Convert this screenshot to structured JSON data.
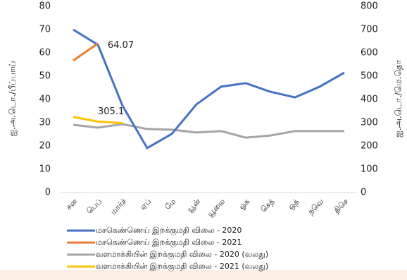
{
  "chart_data": {
    "type": "line",
    "categories": [
      "சன",
      "பெப்",
      "மார்ச்",
      "ஏப்",
      "மே",
      "யூன்",
      "யூலை",
      "ஓக",
      "செத்",
      "ஒத்",
      "நவெ",
      "திசெ"
    ],
    "y_label": "ஐ.அ.டொ./பீப்பாய்",
    "y2_label": "ஐ.அ.டொ./மெ.தொ",
    "ylim": [
      0,
      80
    ],
    "yticks": [
      0,
      10,
      20,
      30,
      40,
      50,
      60,
      70,
      80
    ],
    "y2lim": [
      0,
      800
    ],
    "y2ticks": [
      0,
      100,
      200,
      300,
      400,
      500,
      600,
      700,
      800
    ],
    "legend": "bottom",
    "series": [
      {
        "name": "மசகெண்ணெய் இறக்குமதி விலை - 2020",
        "color": "#4472c4",
        "values": [
          70,
          63.5,
          37.3,
          19.1,
          25.2,
          37.9,
          45.5,
          47,
          43.3,
          40.9,
          45.5,
          51.5
        ]
      },
      {
        "name": "மசகெண்ணெய் இறக்குமதி விலை - 2021",
        "color": "#ed7d31",
        "values": [
          56.7,
          64.07,
          null,
          null,
          null,
          null,
          null,
          null,
          null,
          null,
          null,
          null
        ],
        "value_labels": [
          null,
          "64.07",
          null,
          null,
          null,
          null,
          null,
          null,
          null,
          null,
          null,
          null
        ]
      },
      {
        "name": "வளமாக்கியின் இறக்குமதி விலை - 2020 (வலது)",
        "color": "#a5a5a5",
        "axis": "y2",
        "values": [
          291,
          279,
          294,
          273,
          270,
          258,
          264,
          236,
          245,
          264,
          264,
          264
        ]
      },
      {
        "name": "வளமாக்கியின் இறக்குமதி விலை - 2021 (வலது)",
        "color": "#ffc000",
        "axis": "y2",
        "values": [
          325,
          305.1,
          298,
          null,
          null,
          null,
          null,
          null,
          null,
          null,
          null,
          null
        ],
        "value_labels": [
          null,
          "305.1",
          null,
          null,
          null,
          null,
          null,
          null,
          null,
          null,
          null,
          null
        ]
      }
    ]
  }
}
